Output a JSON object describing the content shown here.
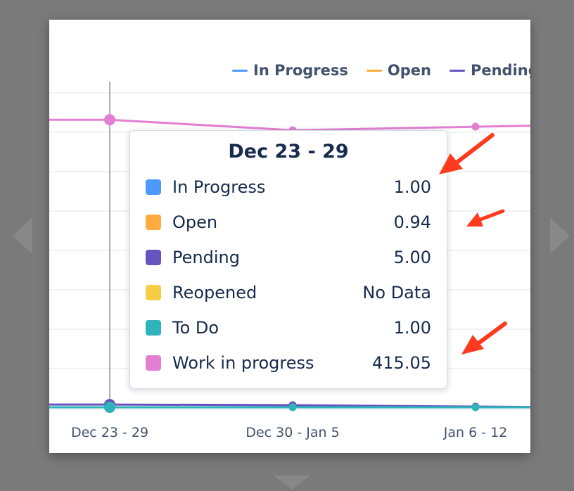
{
  "chart_data": {
    "type": "line",
    "categories": [
      "Dec 23 - 29",
      "Dec 30 - Jan 5",
      "Jan 6 - 12"
    ],
    "series": [
      {
        "name": "In Progress",
        "color": "#4c9aff",
        "values": [
          1.0,
          null,
          null
        ]
      },
      {
        "name": "Open",
        "color": "#ffab40",
        "values": [
          0.94,
          null,
          null
        ]
      },
      {
        "name": "Pending",
        "color": "#6554c0",
        "values": [
          5.0,
          4.0,
          2.0
        ]
      },
      {
        "name": "Reopened",
        "color": "#f5cd47",
        "values": [
          null,
          null,
          null
        ]
      },
      {
        "name": "To Do",
        "color": "#2fb4bc",
        "values": [
          1.0,
          1.0,
          1.0
        ]
      },
      {
        "name": "Work in progress",
        "color": "#e27fd2",
        "values": [
          415.05,
          400.0,
          405.0
        ]
      }
    ],
    "legend_visible": [
      "In Progress",
      "Open",
      "Pending"
    ],
    "legend_position": "top-right",
    "ylim": [
      0,
      470
    ],
    "grid": true,
    "highlight_category": "Dec 23 - 29"
  },
  "tooltip": {
    "title": "Dec 23 - 29",
    "rows": [
      {
        "label": "In Progress",
        "value": "1.00",
        "color": "#4c9aff"
      },
      {
        "label": "Open",
        "value": "0.94",
        "color": "#ffab40"
      },
      {
        "label": "Pending",
        "value": "5.00",
        "color": "#6554c0"
      },
      {
        "label": "Reopened",
        "value": "No Data",
        "color": "#f5cd47"
      },
      {
        "label": "To Do",
        "value": "1.00",
        "color": "#2fb4bc"
      },
      {
        "label": "Work in progress",
        "value": "415.05",
        "color": "#e27fd2"
      }
    ]
  },
  "annotation_color": "#ff3b1f"
}
